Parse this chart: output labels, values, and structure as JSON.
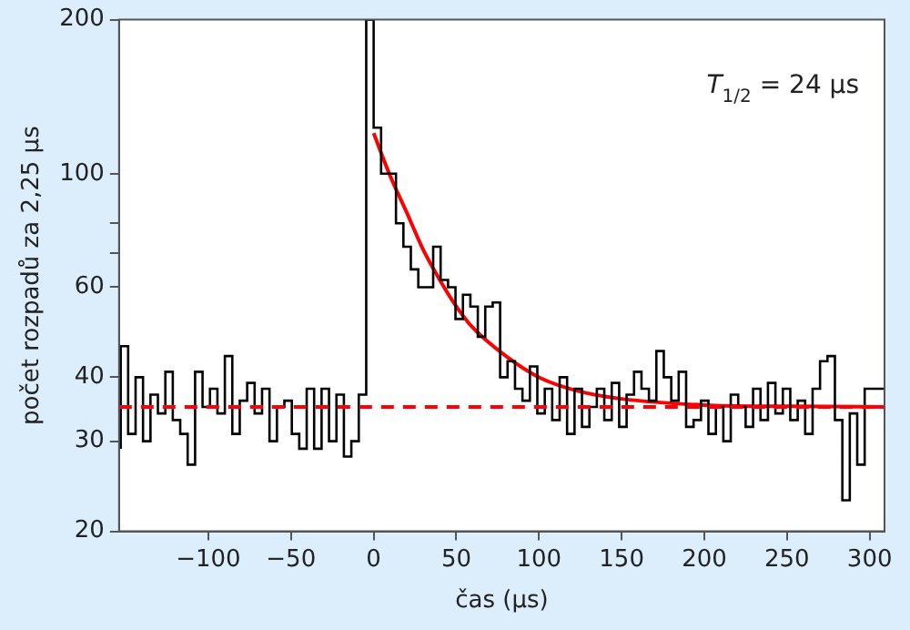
{
  "chart_data": {
    "type": "step",
    "xlabel": "čas (µs)",
    "ylabel": "počet rozpadů za 2,25 µs",
    "annotations": [
      "T$_{1/2}$ = 24 µs"
    ],
    "log": "y",
    "grid": false,
    "legend": false,
    "xlim": [
      -154,
      309
    ],
    "xticks": [
      {
        "value": -100,
        "label": "−100"
      },
      {
        "value": -50,
        "label": "−50"
      },
      0,
      50,
      100,
      150,
      200,
      250,
      300
    ],
    "ylim": [
      20,
      200
    ],
    "yticks": [
      20,
      30,
      40,
      60,
      {
        "value": 70,
        "label": null
      },
      {
        "value": 80,
        "label": null
      },
      100,
      200
    ],
    "ref_lines": [
      {
        "axis": "y",
        "value": 35,
        "color": "#ff0000",
        "line_style": "dashed"
      }
    ],
    "series": [
      {
        "color": "#000000",
        "x": [
          -153,
          -148.5,
          -144,
          -139.5,
          -135,
          -130.5,
          -126,
          -121.5,
          -117,
          -112.5,
          -108,
          -103.5,
          -99,
          -94.5,
          -90,
          -85.5,
          -81,
          -76.5,
          -72,
          -67.5,
          -63,
          -58.5,
          -54,
          -49.5,
          -45,
          -40.5,
          -36,
          -31.5,
          -27,
          -22.5,
          -18,
          -13.5,
          -9,
          -4.5,
          0,
          4.5,
          9,
          13.5,
          18,
          22.5,
          27,
          31.5,
          36,
          40.5,
          45,
          49.5,
          54,
          58.5,
          63,
          67.5,
          72,
          76.5,
          81,
          85.5,
          90,
          94.5,
          99,
          103.5,
          108,
          112.5,
          117,
          121.5,
          126,
          130.5,
          135,
          139.5,
          144,
          148.5,
          153,
          157.5,
          162,
          166.5,
          171,
          175.5,
          180,
          184.5,
          189,
          193.5,
          198,
          202.5,
          207,
          211.5,
          216,
          220.5,
          225,
          229.5,
          234,
          238.5,
          243,
          247.5,
          252,
          256.5,
          261,
          265.5,
          270,
          274.5,
          279,
          283.5,
          288,
          292.5,
          297,
          301.5,
          309
        ],
        "values": [
          29,
          46,
          31,
          40,
          30,
          37,
          34,
          41,
          33,
          31,
          27,
          41,
          35,
          38,
          34,
          44,
          31,
          36,
          39,
          34,
          38,
          30,
          35,
          36,
          31,
          29,
          38,
          29,
          38,
          30,
          37,
          28,
          30,
          37,
          200,
          123,
          100,
          100,
          80,
          72,
          65,
          60,
          60,
          72,
          62,
          60,
          52,
          58,
          55,
          48,
          55,
          56,
          40,
          43,
          38,
          36,
          42,
          34,
          38,
          33,
          40,
          31,
          38,
          32,
          35,
          38,
          33,
          39,
          32,
          37,
          41,
          38,
          36,
          45,
          40,
          36,
          41,
          32,
          33,
          36,
          31,
          35,
          30,
          37,
          35,
          32,
          38,
          33,
          39,
          34,
          38,
          33,
          36,
          31,
          38,
          43,
          44,
          33,
          23,
          34,
          27,
          38,
          38
        ]
      },
      {
        "type": "line",
        "color": "#ff0000",
        "x": [
          0,
          10,
          20,
          30,
          40,
          50,
          60,
          80,
          100,
          125,
          150,
          200,
          250,
          309
        ],
        "values": [
          120,
          99,
          84,
          71,
          62,
          55,
          50,
          44,
          40,
          37.5,
          36.3,
          35.3,
          35.1,
          35
        ]
      }
    ]
  }
}
